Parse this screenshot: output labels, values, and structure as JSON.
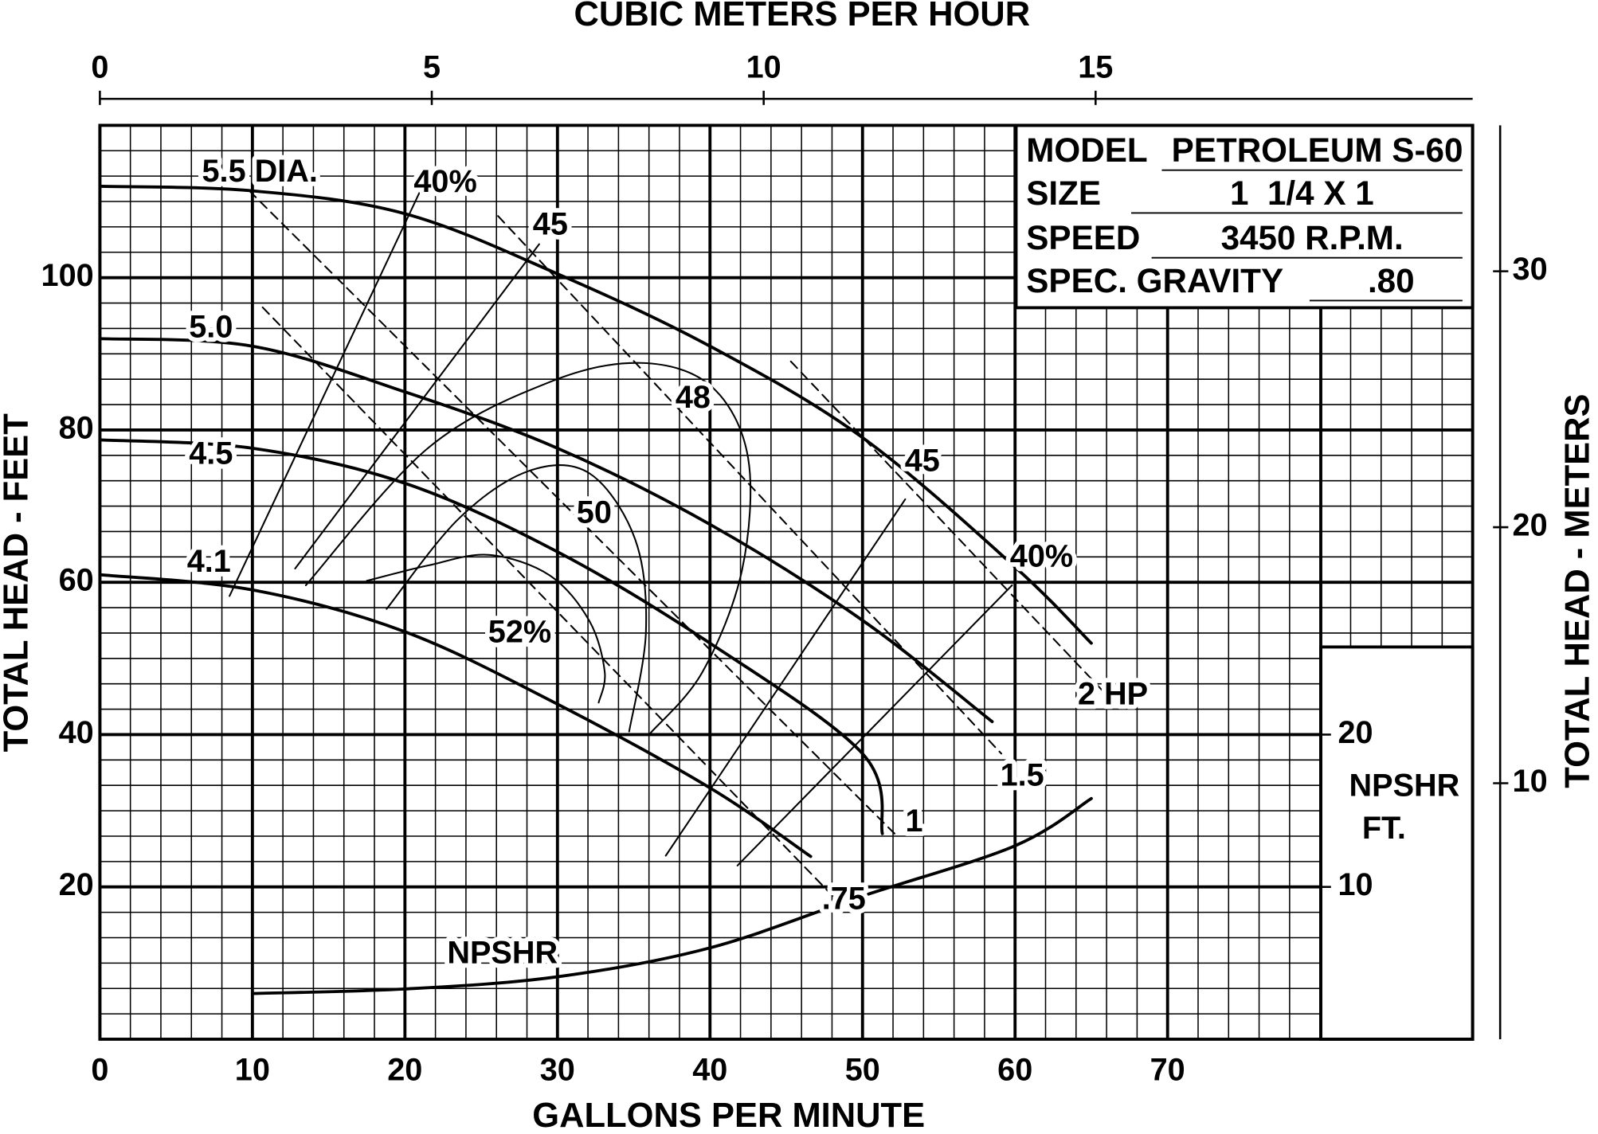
{
  "chart_data": {
    "type": "line",
    "x2label": "CUBIC METERS PER HOUR",
    "xlabel": "GALLONS PER MINUTE",
    "ylabel": "TOTAL HEAD - FEET",
    "y2label": "TOTAL HEAD - METERS",
    "y3label": [
      "NPSHR",
      "FT."
    ],
    "xlim": [
      0,
      90
    ],
    "xticks": [
      0,
      10,
      20,
      30,
      40,
      50,
      60,
      70
    ],
    "ylim": [
      0,
      120
    ],
    "yticks": [
      20,
      40,
      60,
      80,
      100
    ],
    "x2lim": [
      0,
      20.68
    ],
    "x2ticks": [
      0,
      5,
      10,
      15
    ],
    "y2lim": [
      0,
      35.7
    ],
    "y2ticks": [
      10,
      20,
      30
    ],
    "y3lim": [
      0,
      60
    ],
    "y3ticks": [
      10,
      20
    ],
    "grid": true,
    "grid_minor": {
      "x": 5,
      "y": 6
    },
    "color": "#000000",
    "info": [
      {
        "label": "MODEL",
        "value": "PETROLEUM S-60"
      },
      {
        "label": "SIZE",
        "value": "1  1/4 X 1"
      },
      {
        "label": "SPEED",
        "value": "3450 R.P.M."
      },
      {
        "label": "SPEC. GRAVITY",
        "value": ".80"
      }
    ],
    "series": [
      {
        "name": "5.5 DIA.",
        "kind": "diameter",
        "x": [
          0,
          10,
          20,
          30,
          40,
          50,
          60,
          65
        ],
        "values": [
          112,
          111.4,
          108.4,
          100.5,
          91,
          79,
          62,
          52
        ]
      },
      {
        "name": "5.0",
        "kind": "diameter",
        "x": [
          0,
          10,
          20,
          30,
          40,
          50,
          58.5
        ],
        "values": [
          92,
          91,
          85,
          77.6,
          67.6,
          55,
          41.7
        ]
      },
      {
        "name": "4.5",
        "kind": "diameter",
        "x": [
          0,
          10,
          20,
          30,
          40,
          50,
          51.3
        ],
        "values": [
          78.7,
          77.6,
          73,
          64,
          52,
          37.5,
          27
        ]
      },
      {
        "name": "4.1",
        "kind": "diameter",
        "x": [
          0,
          10,
          20,
          30,
          40,
          46.6
        ],
        "values": [
          61,
          59,
          53.5,
          44,
          33,
          24
        ]
      },
      {
        "name": "NPSHR",
        "kind": "npshr",
        "axis": "y3",
        "x": [
          10,
          20,
          30,
          40,
          50,
          60,
          65
        ],
        "values": [
          3,
          3.3,
          4.1,
          6,
          9.4,
          12.7,
          15.8
        ]
      },
      {
        "name": ".75",
        "kind": "power",
        "x": [
          10.67,
          48.1
        ],
        "values": [
          96.1,
          18.7
        ]
      },
      {
        "name": "1",
        "kind": "power",
        "x": [
          9.8,
          52.1
        ],
        "values": [
          111.4,
          27
        ]
      },
      {
        "name": "1.5",
        "kind": "power",
        "x": [
          26.1,
          59.1
        ],
        "values": [
          108.1,
          37.5
        ]
      },
      {
        "name": "2 HP",
        "kind": "power",
        "x": [
          45.3,
          66.1
        ],
        "values": [
          89,
          45
        ]
      },
      {
        "name": "40%",
        "kind": "efficiency",
        "x": [
          8.5,
          21.1
        ],
        "values": [
          58.2,
          111.8
        ]
      },
      {
        "name": "45",
        "kind": "efficiency",
        "x": [
          12.8,
          28.8
        ],
        "values": [
          61.8,
          104.4
        ]
      },
      {
        "name": "48",
        "kind": "efficiency",
        "x": [
          13.5,
          21.5,
          29.5,
          35.5,
          40.1,
          42.5,
          42.1,
          39.5,
          36.1
        ],
        "values": [
          59.6,
          77.6,
          86.3,
          88.8,
          85.7,
          76.3,
          61.6,
          48.2,
          40.2
        ]
      },
      {
        "name": "50",
        "kind": "efficiency",
        "x": [
          18.8,
          23.5,
          28.1,
          32.1,
          35.1,
          35.8,
          34.7
        ],
        "values": [
          56.5,
          68.3,
          74.6,
          74.3,
          65.6,
          53.5,
          40.4
        ]
      },
      {
        "name": "52%",
        "kind": "efficiency",
        "x": [
          17.5,
          21.5,
          25.5,
          29.5,
          32.1,
          33.1,
          32.7
        ],
        "values": [
          60.2,
          62.2,
          63.6,
          60.9,
          54.9,
          48.2,
          44.2
        ]
      },
      {
        "name": "45",
        "kind": "efficiency",
        "x": [
          37.1,
          52.8
        ],
        "values": [
          24.1,
          70.9
        ]
      },
      {
        "name": "40%",
        "kind": "efficiency",
        "x": [
          41.8,
          59.8
        ],
        "values": [
          22.8,
          59.6
        ]
      }
    ]
  }
}
